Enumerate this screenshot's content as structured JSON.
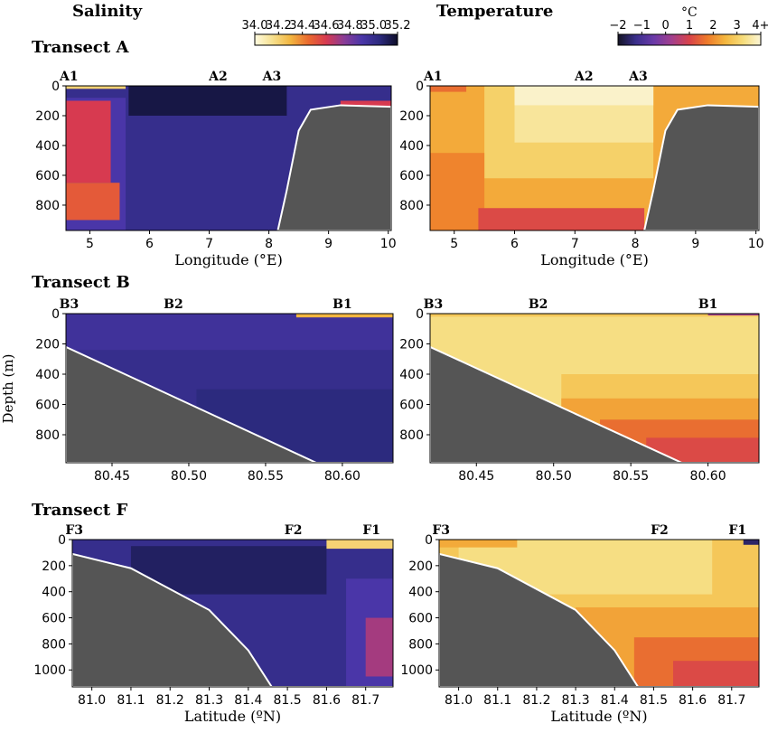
{
  "figure": {
    "colorbars": [
      {
        "title": "Salinity",
        "unit": "",
        "ticks": [
          "34.0",
          "34.2",
          "34.4",
          "34.6",
          "34.8",
          "35.0",
          "35.2"
        ],
        "colors": [
          "#fffbe0",
          "#f6e08e",
          "#f2b640",
          "#ea6a2e",
          "#d73a50",
          "#8a3c96",
          "#4a36a8",
          "#2c2a7e",
          "#0d0d28"
        ]
      },
      {
        "title": "Temperature",
        "unit": "°C",
        "ticks": [
          "−2",
          "−1",
          "0",
          "1",
          "2",
          "3",
          "4+"
        ],
        "colors": [
          "#141424",
          "#3a2f8c",
          "#6a3aa8",
          "#a23f8e",
          "#d8434a",
          "#ee7a2a",
          "#f4b63e",
          "#f6dc7a",
          "#fbf5d6"
        ]
      }
    ],
    "y_axis_title": "Depth (m)"
  },
  "chart_data": [
    {
      "type": "heatmap",
      "panel": "Transect A — Salinity",
      "transect_title": "Transect A",
      "variable": "Salinity",
      "xlabel": "Longitude (°E)",
      "x_ticks": [
        "5",
        "6",
        "7",
        "8",
        "9",
        "10"
      ],
      "x_range": [
        4.6,
        10.05
      ],
      "y_ticks": [
        "0",
        "200",
        "400",
        "600",
        "800"
      ],
      "y_range": [
        0,
        970
      ],
      "stations": [
        {
          "label": "A1",
          "x": 4.65
        },
        {
          "label": "A2",
          "x": 7.15
        },
        {
          "label": "A3",
          "x": 8.05
        }
      ],
      "seabed": [
        [
          8.15,
          970
        ],
        [
          8.3,
          700
        ],
        [
          8.5,
          300
        ],
        [
          8.7,
          160
        ],
        [
          9.2,
          130
        ],
        [
          10.05,
          140
        ]
      ],
      "layers": [
        {
          "value": 35.0,
          "x": [
            4.6,
            10.05
          ],
          "y": [
            0,
            970
          ]
        },
        {
          "value": 34.9,
          "x": [
            5.9,
            8.3
          ],
          "y": [
            0,
            160
          ]
        },
        {
          "value": 35.15,
          "x": [
            5.65,
            8.3
          ],
          "y": [
            0,
            200
          ]
        },
        {
          "value": 34.9,
          "x": [
            4.6,
            5.6
          ],
          "y": [
            80,
            970
          ]
        },
        {
          "value": 34.6,
          "x": [
            4.6,
            5.35
          ],
          "y": [
            100,
            650
          ]
        },
        {
          "value": 34.5,
          "x": [
            4.6,
            5.5
          ],
          "y": [
            650,
            900
          ]
        },
        {
          "value": 34.2,
          "x": [
            4.6,
            5.6
          ],
          "y": [
            0,
            20
          ]
        },
        {
          "value": 34.6,
          "x": [
            9.2,
            10.05
          ],
          "y": [
            100,
            160
          ]
        }
      ]
    },
    {
      "type": "heatmap",
      "panel": "Transect A — Temperature",
      "variable": "Temperature",
      "xlabel": "Longitude (°E)",
      "x_ticks": [
        "5",
        "6",
        "7",
        "8",
        "9",
        "10"
      ],
      "x_range": [
        4.6,
        10.05
      ],
      "y_ticks": [
        "0",
        "200",
        "400",
        "600",
        "800"
      ],
      "y_range": [
        0,
        970
      ],
      "stations": [
        {
          "label": "A1",
          "x": 4.65
        },
        {
          "label": "A2",
          "x": 7.15
        },
        {
          "label": "A3",
          "x": 8.05
        }
      ],
      "seabed": [
        [
          8.15,
          970
        ],
        [
          8.3,
          700
        ],
        [
          8.5,
          300
        ],
        [
          8.7,
          160
        ],
        [
          9.2,
          130
        ],
        [
          10.05,
          140
        ]
      ],
      "layers": [
        {
          "value": 2.5,
          "x": [
            4.6,
            10.05
          ],
          "y": [
            0,
            970
          ]
        },
        {
          "value": 3.2,
          "x": [
            5.5,
            8.3
          ],
          "y": [
            0,
            620
          ]
        },
        {
          "value": 3.7,
          "x": [
            6.0,
            8.3
          ],
          "y": [
            0,
            380
          ]
        },
        {
          "value": 4.1,
          "x": [
            6.0,
            8.3
          ],
          "y": [
            0,
            130
          ]
        },
        {
          "value": 2.0,
          "x": [
            4.6,
            5.5
          ],
          "y": [
            450,
            970
          ]
        },
        {
          "value": 1.2,
          "x": [
            5.4,
            8.15
          ],
          "y": [
            820,
            970
          ]
        },
        {
          "value": 1.7,
          "x": [
            4.6,
            5.2
          ],
          "y": [
            0,
            40
          ]
        }
      ]
    },
    {
      "type": "heatmap",
      "panel": "Transect B — Salinity",
      "transect_title": "Transect B",
      "variable": "Salinity",
      "xlabel": "",
      "x_ticks": [
        "80.45",
        "80.50",
        "80.55",
        "80.60"
      ],
      "x_range": [
        80.42,
        80.633
      ],
      "y_ticks": [
        "0",
        "200",
        "400",
        "600",
        "800"
      ],
      "y_range": [
        0,
        985
      ],
      "stations": [
        {
          "label": "B3",
          "x": 80.422
        },
        {
          "label": "B2",
          "x": 80.49
        },
        {
          "label": "B1",
          "x": 80.6
        }
      ],
      "seabed": [
        [
          80.42,
          220
        ],
        [
          80.583,
          985
        ]
      ],
      "layers": [
        {
          "value": 35.0,
          "x": [
            80.42,
            80.633
          ],
          "y": [
            0,
            985
          ]
        },
        {
          "value": 34.95,
          "x": [
            80.42,
            80.633
          ],
          "y": [
            0,
            240
          ]
        },
        {
          "value": 35.05,
          "x": [
            80.505,
            80.633
          ],
          "y": [
            500,
            985
          ]
        },
        {
          "value": 34.3,
          "x": [
            80.57,
            80.633
          ],
          "y": [
            0,
            25
          ]
        }
      ]
    },
    {
      "type": "heatmap",
      "panel": "Transect B — Temperature",
      "variable": "Temperature",
      "xlabel": "",
      "x_ticks": [
        "80.45",
        "80.50",
        "80.55",
        "80.60"
      ],
      "x_range": [
        80.42,
        80.633
      ],
      "y_ticks": [
        "0",
        "200",
        "400",
        "600",
        "800"
      ],
      "y_range": [
        0,
        985
      ],
      "stations": [
        {
          "label": "B3",
          "x": 80.422
        },
        {
          "label": "B2",
          "x": 80.49
        },
        {
          "label": "B1",
          "x": 80.6
        }
      ],
      "seabed": [
        [
          80.42,
          220
        ],
        [
          80.583,
          985
        ]
      ],
      "layers": [
        {
          "value": 3.5,
          "x": [
            80.42,
            80.633
          ],
          "y": [
            0,
            985
          ]
        },
        {
          "value": 3.0,
          "x": [
            80.505,
            80.633
          ],
          "y": [
            400,
            985
          ]
        },
        {
          "value": 2.4,
          "x": [
            80.505,
            80.633
          ],
          "y": [
            560,
            985
          ]
        },
        {
          "value": 1.7,
          "x": [
            80.53,
            80.633
          ],
          "y": [
            700,
            985
          ]
        },
        {
          "value": 1.2,
          "x": [
            80.56,
            80.633
          ],
          "y": [
            820,
            985
          ]
        },
        {
          "value": 3.0,
          "x": [
            80.42,
            80.633
          ],
          "y": [
            0,
            20
          ]
        },
        {
          "value": 0.3,
          "x": [
            80.6,
            80.633
          ],
          "y": [
            0,
            12
          ]
        }
      ]
    },
    {
      "type": "heatmap",
      "panel": "Transect F — Salinity",
      "transect_title": "Transect F",
      "variable": "Salinity",
      "xlabel": "Latitude (ºN)",
      "x_ticks": [
        "81.0",
        "81.1",
        "81.2",
        "81.3",
        "81.4",
        "81.5",
        "81.6",
        "81.7"
      ],
      "x_range": [
        80.95,
        81.77
      ],
      "y_ticks": [
        "0",
        "200",
        "400",
        "600",
        "800",
        "1000"
      ],
      "y_range": [
        0,
        1130
      ],
      "stations": [
        {
          "label": "F3",
          "x": 80.955
        },
        {
          "label": "F2",
          "x": 81.515
        },
        {
          "label": "F1",
          "x": 81.715
        }
      ],
      "seabed": [
        [
          80.95,
          110
        ],
        [
          81.1,
          220
        ],
        [
          81.3,
          540
        ],
        [
          81.4,
          850
        ],
        [
          81.46,
          1130
        ]
      ],
      "layers": [
        {
          "value": 35.0,
          "x": [
            80.95,
            81.77
          ],
          "y": [
            0,
            1130
          ]
        },
        {
          "value": 35.1,
          "x": [
            81.1,
            81.6
          ],
          "y": [
            50,
            420
          ]
        },
        {
          "value": 34.9,
          "x": [
            81.65,
            81.77
          ],
          "y": [
            300,
            1130
          ]
        },
        {
          "value": 34.7,
          "x": [
            81.7,
            81.77
          ],
          "y": [
            600,
            1050
          ]
        },
        {
          "value": 34.2,
          "x": [
            81.6,
            81.77
          ],
          "y": [
            0,
            70
          ]
        }
      ]
    },
    {
      "type": "heatmap",
      "panel": "Transect F — Temperature",
      "variable": "Temperature",
      "xlabel": "Latitude (ºN)",
      "x_ticks": [
        "81.0",
        "81.1",
        "81.2",
        "81.3",
        "81.4",
        "81.5",
        "81.6",
        "81.7"
      ],
      "x_range": [
        80.95,
        81.77
      ],
      "y_ticks": [
        "0",
        "200",
        "400",
        "600",
        "800",
        "1000"
      ],
      "y_range": [
        0,
        1130
      ],
      "stations": [
        {
          "label": "F3",
          "x": 80.955
        },
        {
          "label": "F2",
          "x": 81.515
        },
        {
          "label": "F1",
          "x": 81.715
        }
      ],
      "seabed": [
        [
          80.95,
          110
        ],
        [
          81.1,
          220
        ],
        [
          81.3,
          540
        ],
        [
          81.4,
          850
        ],
        [
          81.46,
          1130
        ]
      ],
      "layers": [
        {
          "value": 3.0,
          "x": [
            80.95,
            81.77
          ],
          "y": [
            0,
            1130
          ]
        },
        {
          "value": 3.5,
          "x": [
            81.0,
            81.65
          ],
          "y": [
            0,
            420
          ]
        },
        {
          "value": 2.4,
          "x": [
            81.3,
            81.77
          ],
          "y": [
            520,
            1130
          ]
        },
        {
          "value": 1.7,
          "x": [
            81.45,
            81.77
          ],
          "y": [
            750,
            1130
          ]
        },
        {
          "value": 1.2,
          "x": [
            81.55,
            81.77
          ],
          "y": [
            930,
            1130
          ]
        },
        {
          "value": 2.5,
          "x": [
            80.95,
            81.15
          ],
          "y": [
            0,
            60
          ]
        },
        {
          "value": -1.5,
          "x": [
            81.73,
            81.77
          ],
          "y": [
            0,
            40
          ]
        }
      ]
    }
  ]
}
